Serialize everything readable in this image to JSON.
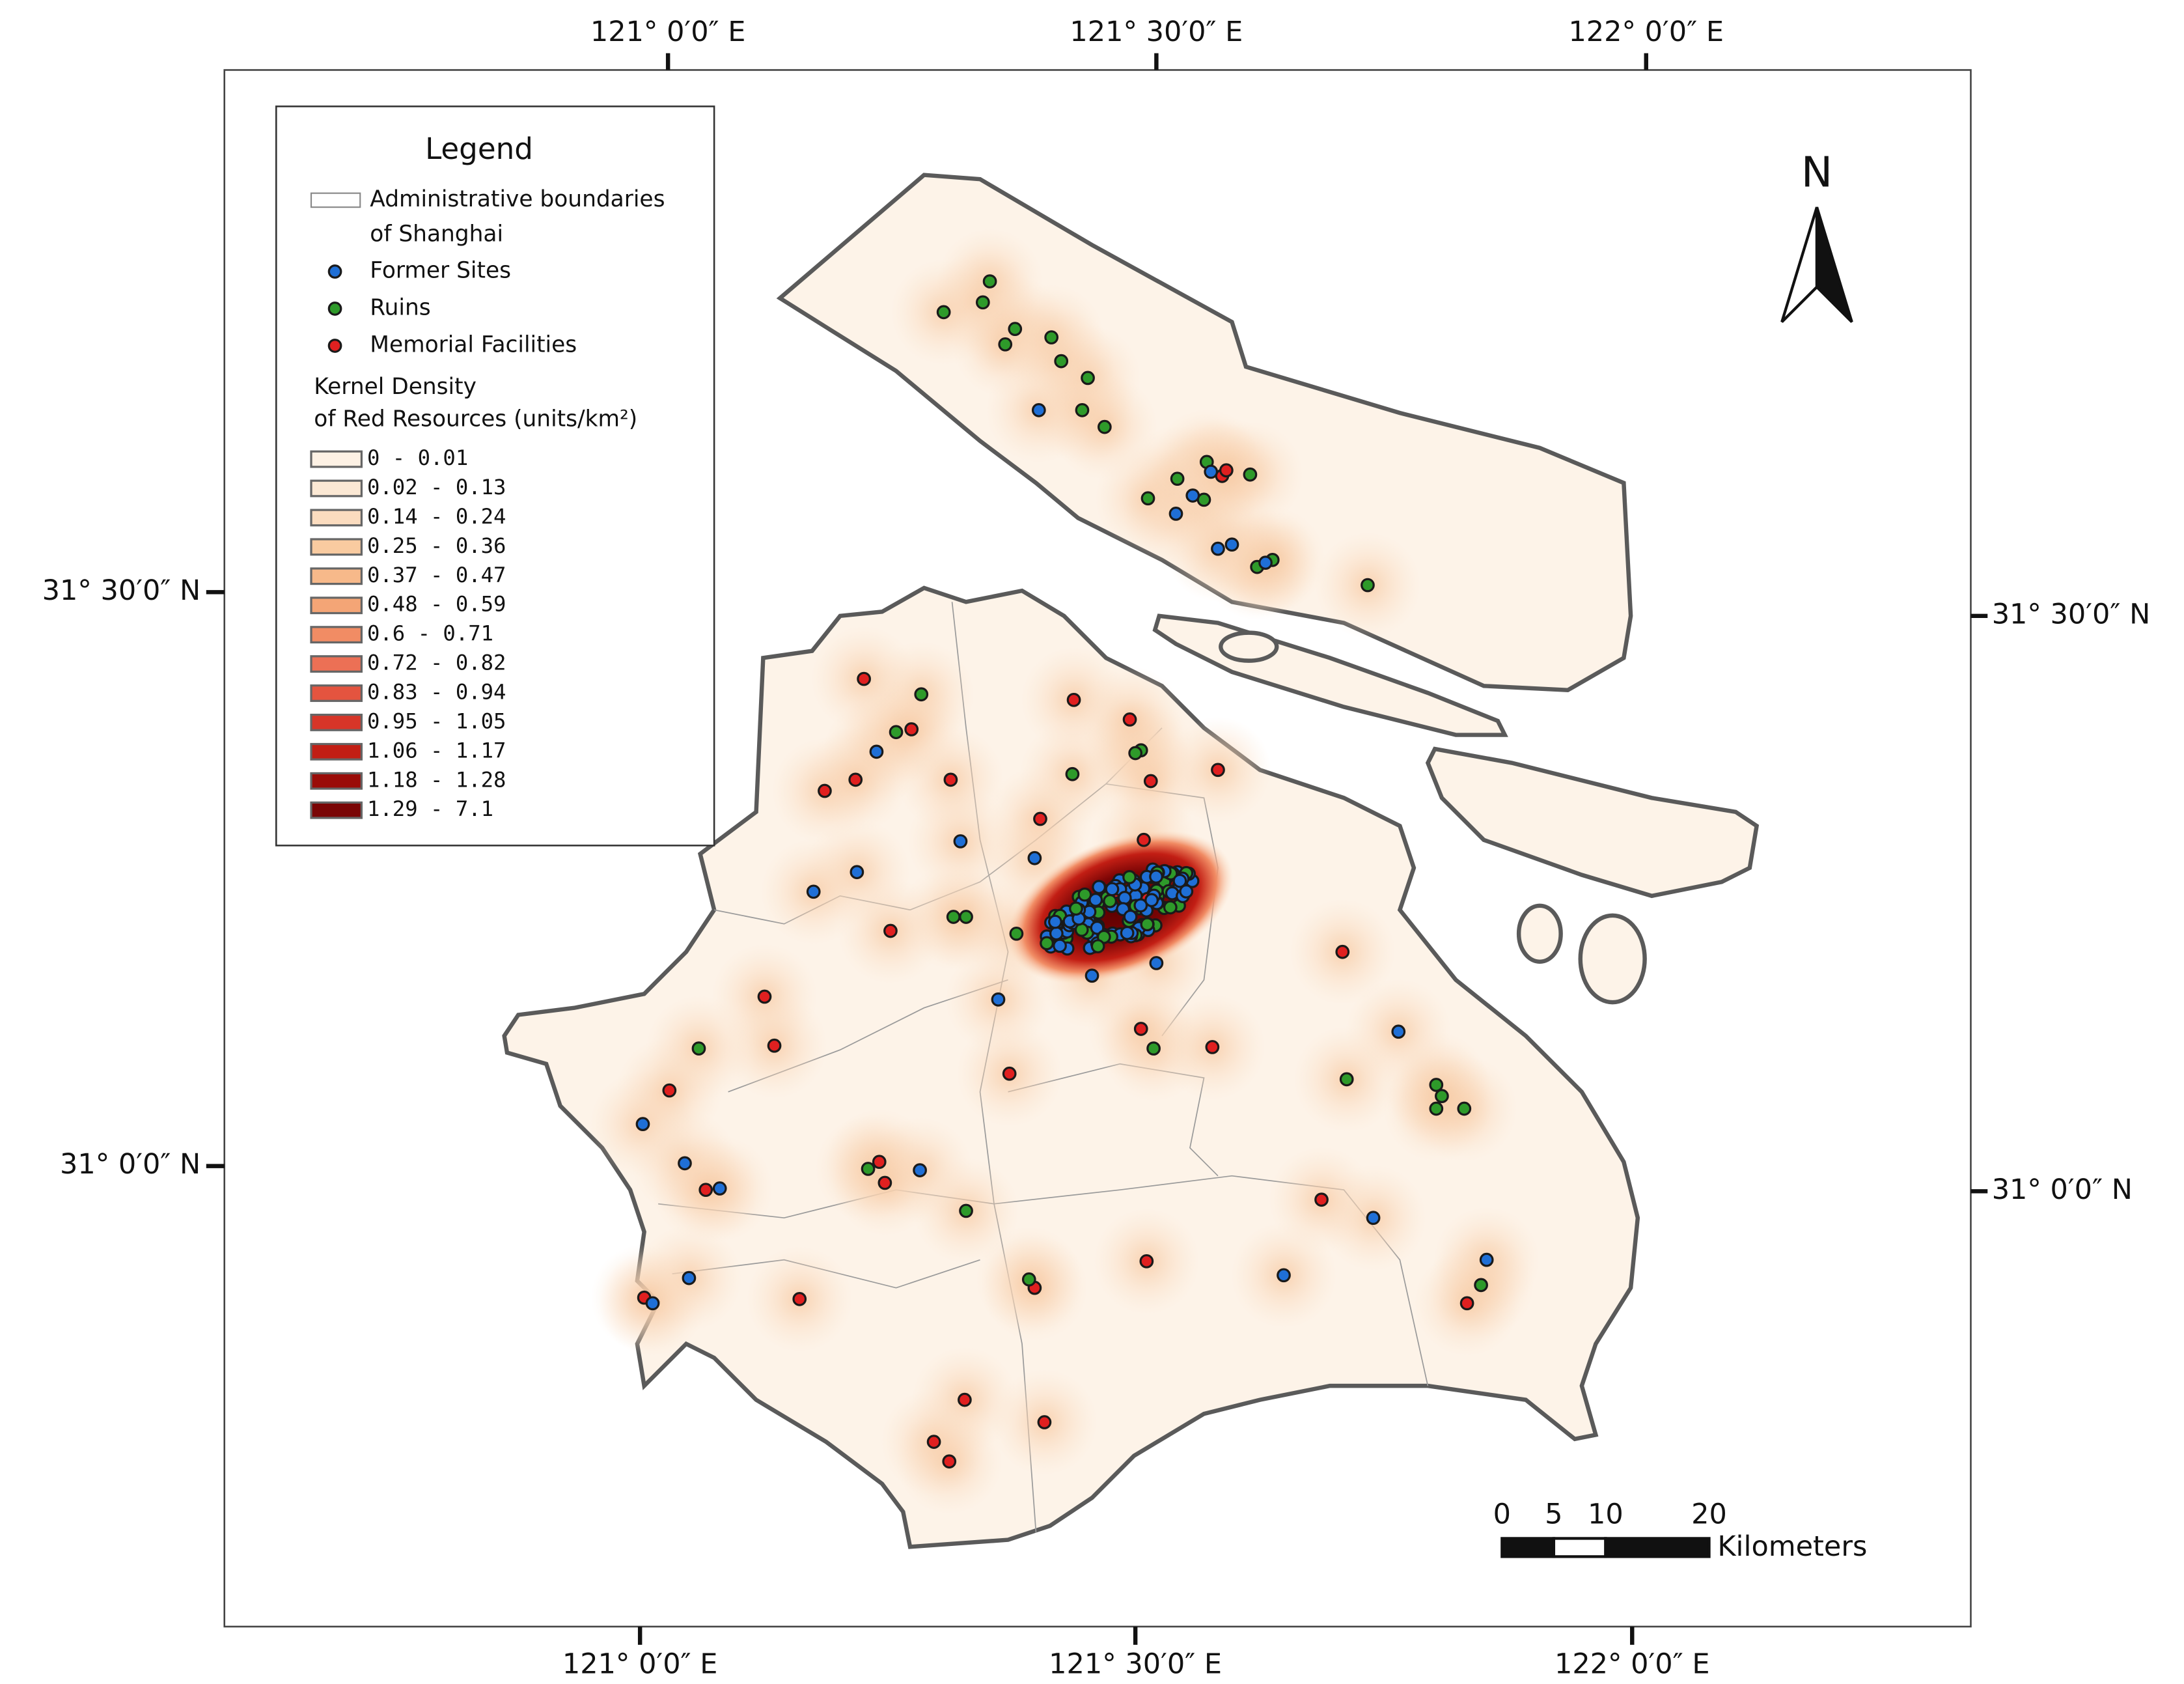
{
  "map": {
    "top_axis": [
      "121° 0′0″ E",
      "121° 30′0″ E",
      "122° 0′0″ E"
    ],
    "bottom_axis": [
      "121° 0′0″ E",
      "121° 30′0″ E",
      "122° 0′0″ E"
    ],
    "left_axis": [
      "31° 30′0″ N",
      "31° 0′0″ N"
    ],
    "right_axis": [
      "31° 30′0″ N",
      "31° 0′0″ N"
    ]
  },
  "legend": {
    "title": "Legend",
    "boundary": [
      "Administrative boundaries",
      "of Shanghai"
    ],
    "points": [
      {
        "label": "Former Sites",
        "color": "#1f6fd6"
      },
      {
        "label": "Ruins",
        "color": "#2e9a2a"
      },
      {
        "label": "Memorial Facilities",
        "color": "#e02020"
      }
    ],
    "density_title": [
      "Kernel Density",
      "of Red Resources (units/km²)"
    ],
    "classes": [
      {
        "label": "0 - 0.01",
        "color": "#fdf1e4"
      },
      {
        "label": "0.02 - 0.13",
        "color": "#fbe8d4"
      },
      {
        "label": "0.14 - 0.24",
        "color": "#fbdcbf"
      },
      {
        "label": "0.25 - 0.36",
        "color": "#f9cba0"
      },
      {
        "label": "0.37 - 0.47",
        "color": "#f7b98a"
      },
      {
        "label": "0.48 - 0.59",
        "color": "#f4a576"
      },
      {
        "label": "0.6 - 0.71",
        "color": "#f18c64"
      },
      {
        "label": "0.72 - 0.82",
        "color": "#ec7055"
      },
      {
        "label": "0.83 - 0.94",
        "color": "#e4543f"
      },
      {
        "label": "0.95 - 1.05",
        "color": "#d73528"
      },
      {
        "label": "1.06 - 1.17",
        "color": "#c21e14"
      },
      {
        "label": "1.18 - 1.28",
        "color": "#9a0c08"
      },
      {
        "label": "1.29 - 7.1",
        "color": "#7a0505"
      }
    ]
  },
  "north": "N",
  "scale_bar": {
    "ticks": [
      0,
      5,
      10,
      20
    ],
    "unit": "Kilometers"
  }
}
